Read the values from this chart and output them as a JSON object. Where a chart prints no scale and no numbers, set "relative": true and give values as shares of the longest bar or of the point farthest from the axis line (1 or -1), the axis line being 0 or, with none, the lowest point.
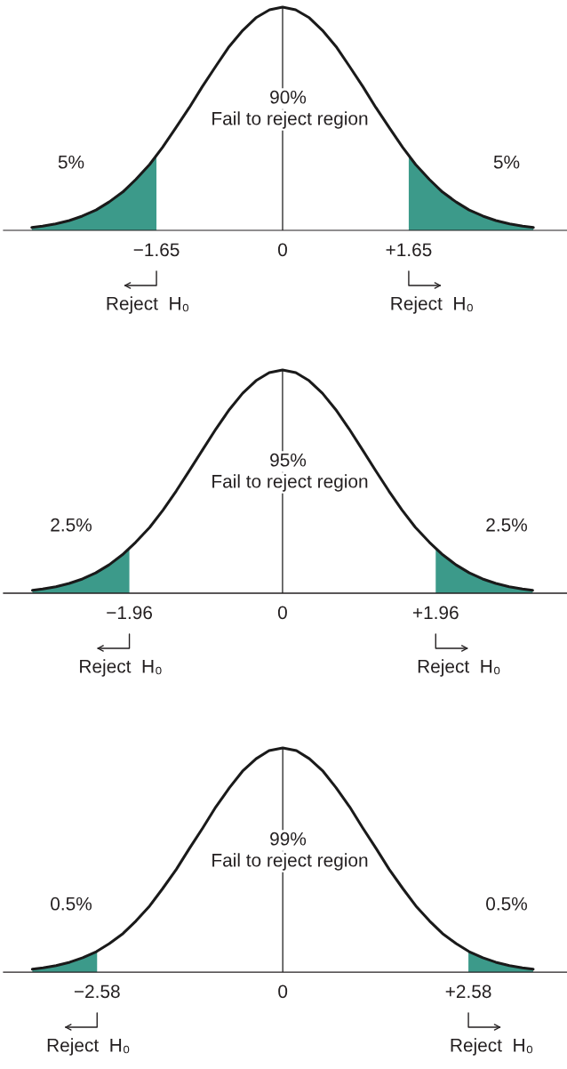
{
  "chart_data": [
    {
      "type": "line",
      "relative": true,
      "xlim": [
        -3.65,
        3.72
      ],
      "xticks": [
        {
          "value": -1.65,
          "label": "−1.65"
        },
        0,
        {
          "value": 1.65,
          "label": "+1.65"
        }
      ],
      "series": [
        {
          "color": "#1a1a1a",
          "x": [
            -3.28,
            -3.14,
            -2.97,
            -2.79,
            -2.62,
            -2.44,
            -2.27,
            -2.09,
            -1.92,
            -1.74,
            -1.57,
            -1.4,
            -1.22,
            -1.05,
            -0.87,
            -0.7,
            -0.52,
            -0.35,
            -0.17,
            0,
            0.17,
            0.35,
            0.52,
            0.7,
            0.87,
            1.05,
            1.22,
            1.4,
            1.57,
            1.74,
            1.92,
            2.09,
            2.27,
            2.44,
            2.62,
            2.79,
            2.97,
            3.14,
            3.28
          ],
          "values": [
            0.013,
            0.019,
            0.029,
            0.044,
            0.064,
            0.091,
            0.127,
            0.172,
            0.228,
            0.295,
            0.372,
            0.458,
            0.55,
            0.644,
            0.737,
            0.823,
            0.896,
            0.952,
            0.988,
            1,
            0.988,
            0.952,
            0.896,
            0.823,
            0.737,
            0.644,
            0.55,
            0.458,
            0.372,
            0.295,
            0.228,
            0.172,
            0.127,
            0.091,
            0.064,
            0.044,
            0.029,
            0.019,
            0.013
          ]
        },
        {
          "type": "area",
          "color": "#3c9a8a",
          "x": [
            -3.28,
            -3.14,
            -2.97,
            -2.79,
            -2.62,
            -2.44,
            -2.27,
            -2.09,
            -1.92,
            -1.74,
            -1.65
          ],
          "values": [
            0.013,
            0.019,
            0.029,
            0.044,
            0.064,
            0.091,
            0.127,
            0.172,
            0.228,
            0.295,
            0.335
          ]
        },
        {
          "type": "area",
          "color": "#3c9a8a",
          "x": [
            1.65,
            1.74,
            1.92,
            2.09,
            2.27,
            2.44,
            2.62,
            2.79,
            2.97,
            3.14,
            3.28
          ],
          "values": [
            0.335,
            0.295,
            0.228,
            0.172,
            0.127,
            0.091,
            0.064,
            0.044,
            0.029,
            0.019,
            0.013
          ]
        }
      ],
      "ref_lines": [
        {
          "axis": "x",
          "value": 0,
          "color": "#1a1a1a"
        }
      ],
      "annotations": [
        "5%",
        "90%",
        "Fail to reject region",
        "5%",
        "Reject  H₀",
        "Reject  H₀"
      ]
    },
    {
      "type": "line",
      "relative": true,
      "xlim": [
        -3.57,
        3.64
      ],
      "xticks": [
        {
          "value": -1.96,
          "label": "−1.96"
        },
        0,
        {
          "value": 1.96,
          "label": "+1.96"
        }
      ],
      "series": [
        {
          "color": "#1a1a1a",
          "x": [
            -3.2,
            -3.07,
            -2.9,
            -2.73,
            -2.56,
            -2.39,
            -2.22,
            -2.05,
            -1.88,
            -1.7,
            -1.53,
            -1.36,
            -1.19,
            -1.02,
            -0.85,
            -0.68,
            -0.51,
            -0.34,
            -0.17,
            0,
            0.17,
            0.34,
            0.51,
            0.68,
            0.85,
            1.02,
            1.19,
            1.36,
            1.53,
            1.7,
            1.88,
            2.05,
            2.22,
            2.39,
            2.56,
            2.73,
            2.9,
            3.07,
            3.2
          ],
          "values": [
            0.013,
            0.019,
            0.029,
            0.044,
            0.064,
            0.091,
            0.127,
            0.172,
            0.228,
            0.295,
            0.372,
            0.458,
            0.55,
            0.644,
            0.737,
            0.823,
            0.896,
            0.952,
            0.988,
            1,
            0.988,
            0.952,
            0.896,
            0.823,
            0.737,
            0.644,
            0.55,
            0.458,
            0.372,
            0.295,
            0.228,
            0.172,
            0.127,
            0.091,
            0.064,
            0.044,
            0.029,
            0.019,
            0.013
          ]
        },
        {
          "type": "area",
          "color": "#3c9a8a",
          "x": [
            -3.2,
            -3.07,
            -2.9,
            -2.73,
            -2.56,
            -2.39,
            -2.22,
            -2.05,
            -1.96
          ],
          "values": [
            0.013,
            0.019,
            0.029,
            0.044,
            0.064,
            0.091,
            0.127,
            0.172,
            0.199
          ]
        },
        {
          "type": "area",
          "color": "#3c9a8a",
          "x": [
            1.96,
            2.05,
            2.22,
            2.39,
            2.56,
            2.73,
            2.9,
            3.07,
            3.2
          ],
          "values": [
            0.199,
            0.172,
            0.127,
            0.091,
            0.064,
            0.044,
            0.029,
            0.019,
            0.013
          ]
        }
      ],
      "ref_lines": [
        {
          "axis": "x",
          "value": 0,
          "color": "#1a1a1a"
        }
      ],
      "annotations": [
        "2.5%",
        "95%",
        "Fail to reject region",
        "2.5%",
        "Reject  H₀",
        "Reject  H₀"
      ]
    },
    {
      "type": "line",
      "relative": true,
      "xlim": [
        -3.88,
        3.95
      ],
      "xticks": [
        {
          "value": -2.58,
          "label": "−2.58"
        },
        0,
        {
          "value": 2.58,
          "label": "+2.58"
        }
      ],
      "series": [
        {
          "color": "#1a1a1a",
          "x": [
            -3.48,
            -3.33,
            -3.15,
            -2.96,
            -2.78,
            -2.59,
            -2.41,
            -2.22,
            -2.04,
            -1.85,
            -1.67,
            -1.48,
            -1.3,
            -1.11,
            -0.93,
            -0.74,
            -0.56,
            -0.37,
            -0.19,
            0,
            0.19,
            0.37,
            0.56,
            0.74,
            0.93,
            1.11,
            1.3,
            1.48,
            1.67,
            1.85,
            2.04,
            2.22,
            2.41,
            2.59,
            2.78,
            2.96,
            3.15,
            3.33,
            3.48
          ],
          "values": [
            0.013,
            0.019,
            0.029,
            0.044,
            0.064,
            0.091,
            0.127,
            0.172,
            0.228,
            0.295,
            0.372,
            0.458,
            0.55,
            0.644,
            0.737,
            0.823,
            0.896,
            0.952,
            0.988,
            1,
            0.988,
            0.952,
            0.896,
            0.823,
            0.737,
            0.644,
            0.55,
            0.458,
            0.372,
            0.295,
            0.228,
            0.172,
            0.127,
            0.091,
            0.064,
            0.044,
            0.029,
            0.019,
            0.013
          ]
        },
        {
          "type": "area",
          "color": "#3c9a8a",
          "x": [
            -3.48,
            -3.33,
            -3.15,
            -2.96,
            -2.78,
            -2.58
          ],
          "values": [
            0.013,
            0.019,
            0.029,
            0.044,
            0.064,
            0.094
          ]
        },
        {
          "type": "area",
          "color": "#3c9a8a",
          "x": [
            2.58,
            2.78,
            2.96,
            3.15,
            3.33,
            3.48
          ],
          "values": [
            0.094,
            0.064,
            0.044,
            0.029,
            0.019,
            0.013
          ]
        }
      ],
      "ref_lines": [
        {
          "axis": "x",
          "value": 0,
          "color": "#1a1a1a"
        }
      ],
      "annotations": [
        "0.5%",
        "99%",
        "Fail to reject region",
        "0.5%",
        "Reject  H₀",
        "Reject  H₀"
      ]
    }
  ]
}
